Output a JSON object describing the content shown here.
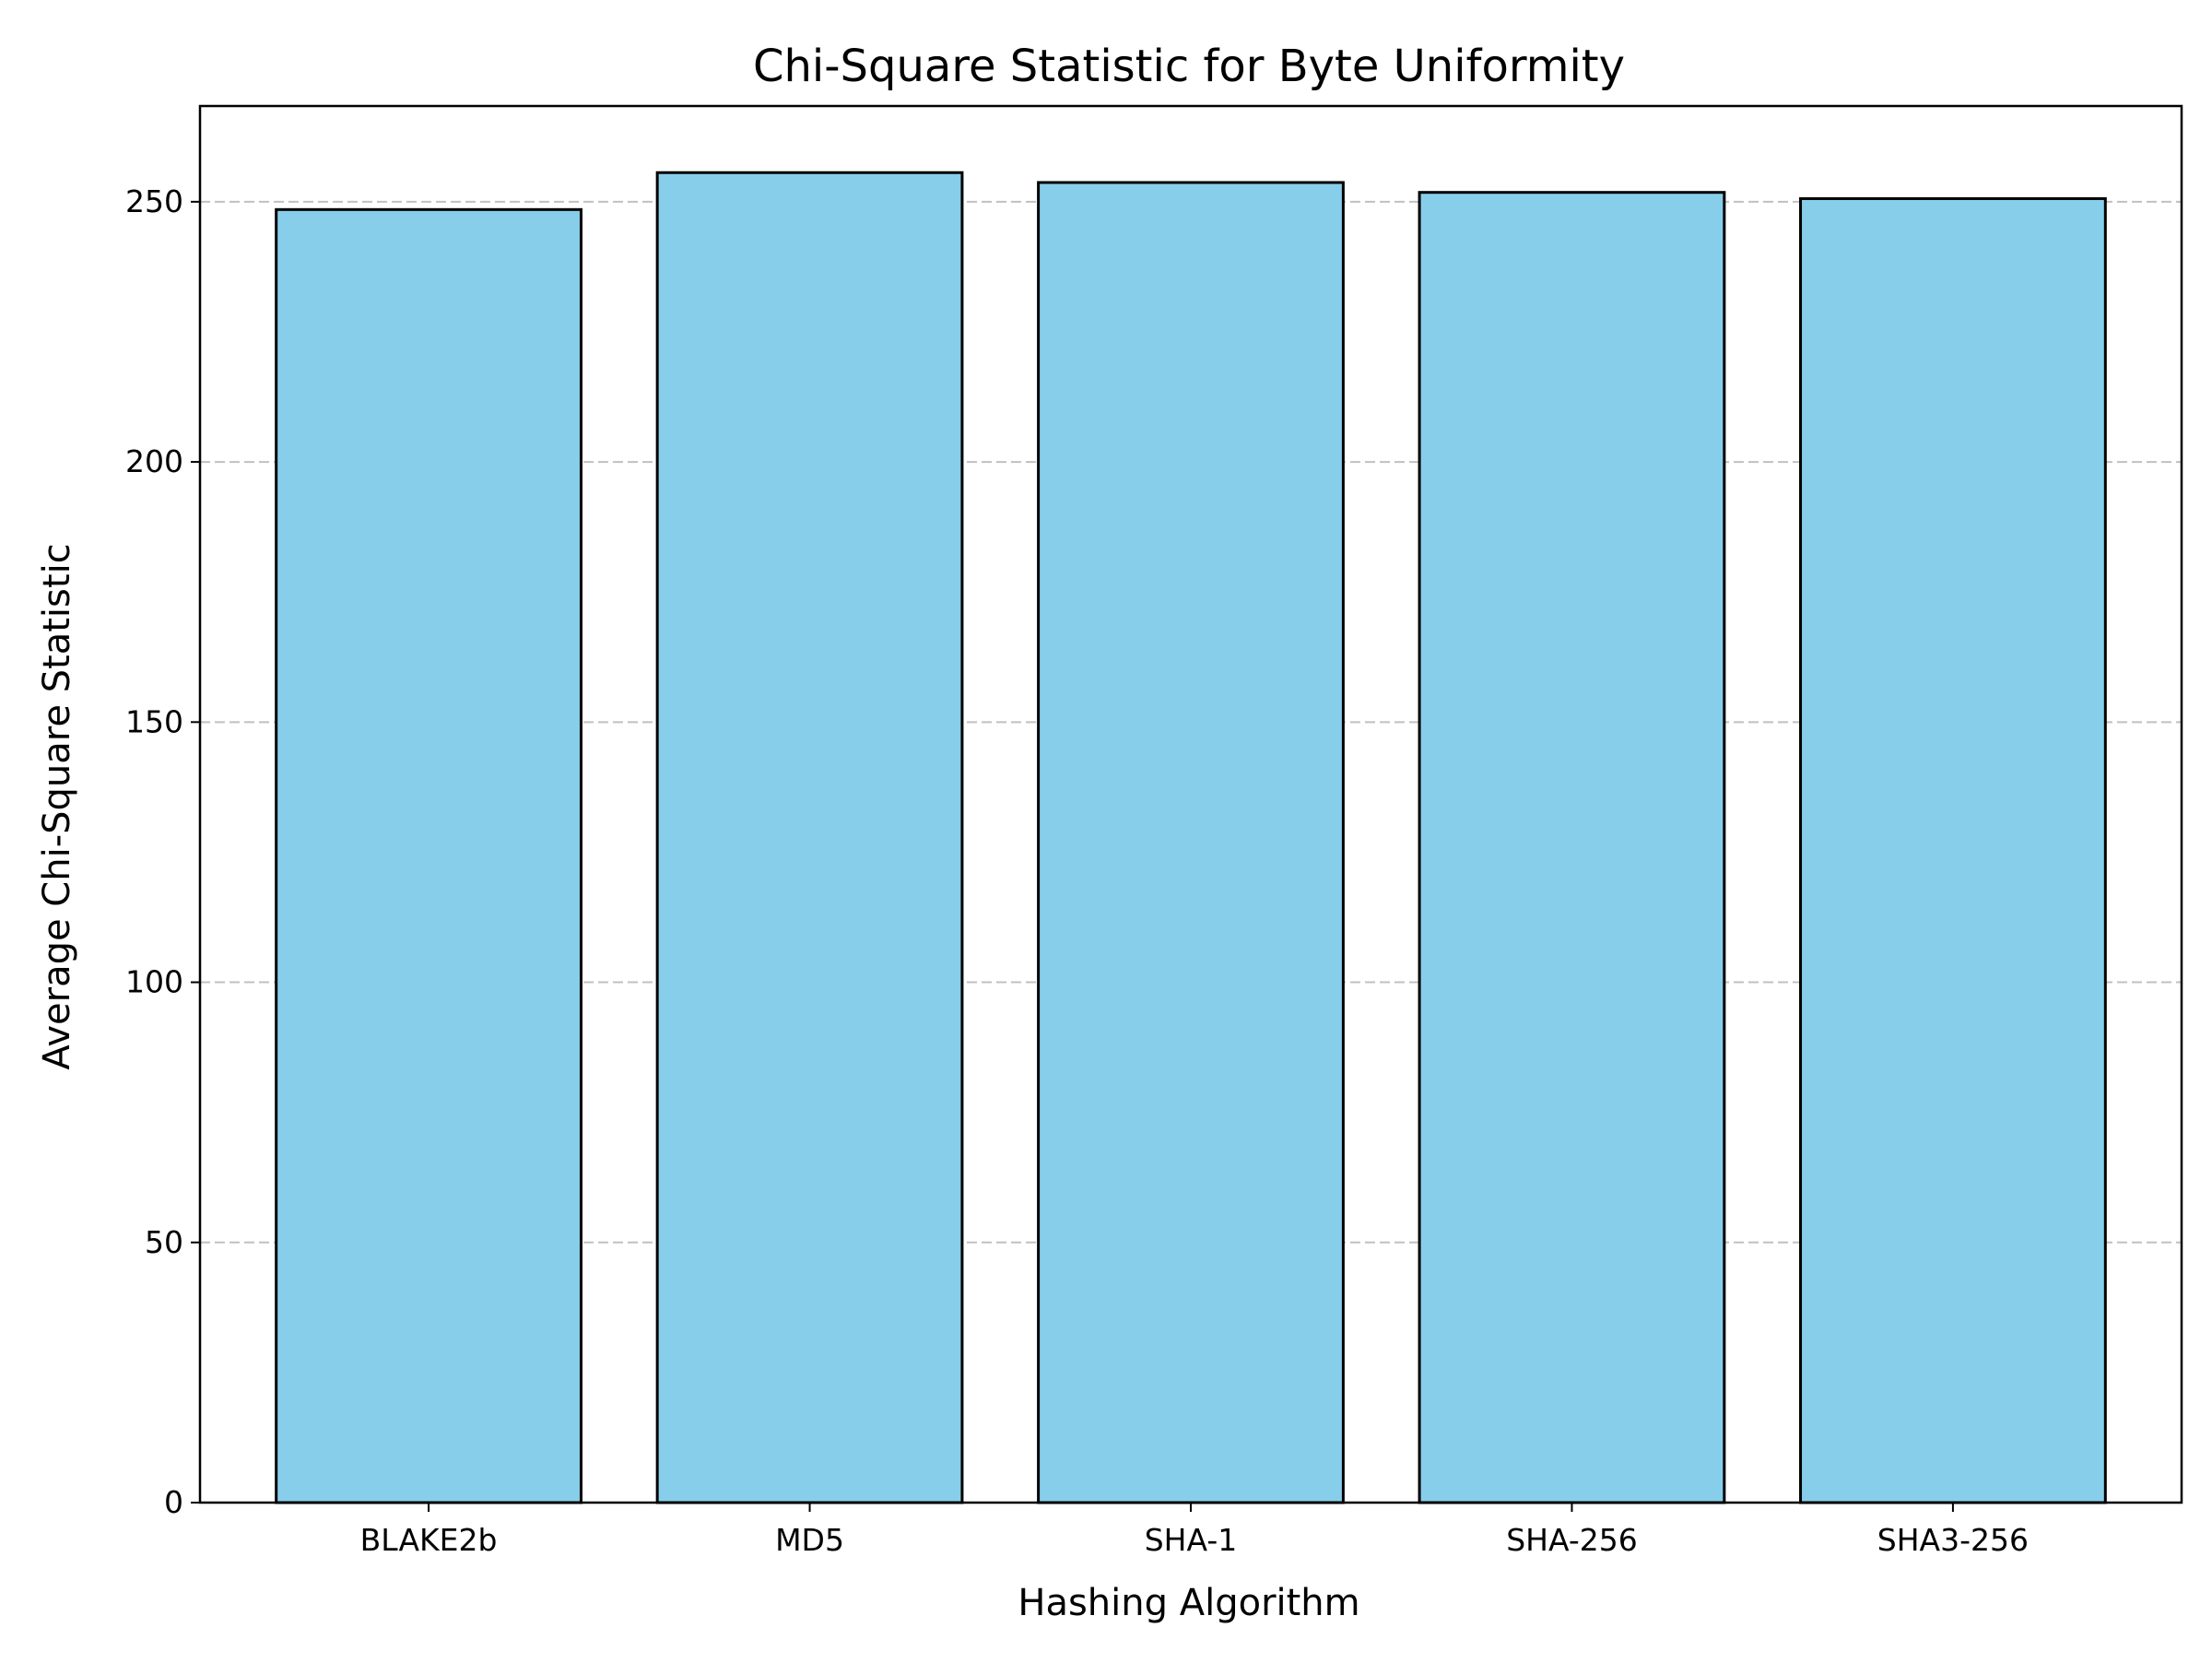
{
  "chart_data": {
    "type": "bar",
    "title": "Chi-Square Statistic for Byte Uniformity",
    "xlabel": "Hashing Algorithm",
    "ylabel": "Average Chi-Square Statistic",
    "categories": [
      "BLAKE2b",
      "MD5",
      "SHA-1",
      "SHA-256",
      "SHA3-256"
    ],
    "values": [
      248.5,
      255.6,
      253.7,
      251.8,
      250.6
    ],
    "ylim": [
      0,
      268.4
    ],
    "yticks": [
      0,
      50,
      100,
      150,
      200,
      250
    ],
    "grid": {
      "axis": "y",
      "style": "dashed",
      "color": "#c0c0c0"
    },
    "bar_color": "#87ceeb",
    "bar_edge_color": "#000000",
    "legend": "none"
  }
}
